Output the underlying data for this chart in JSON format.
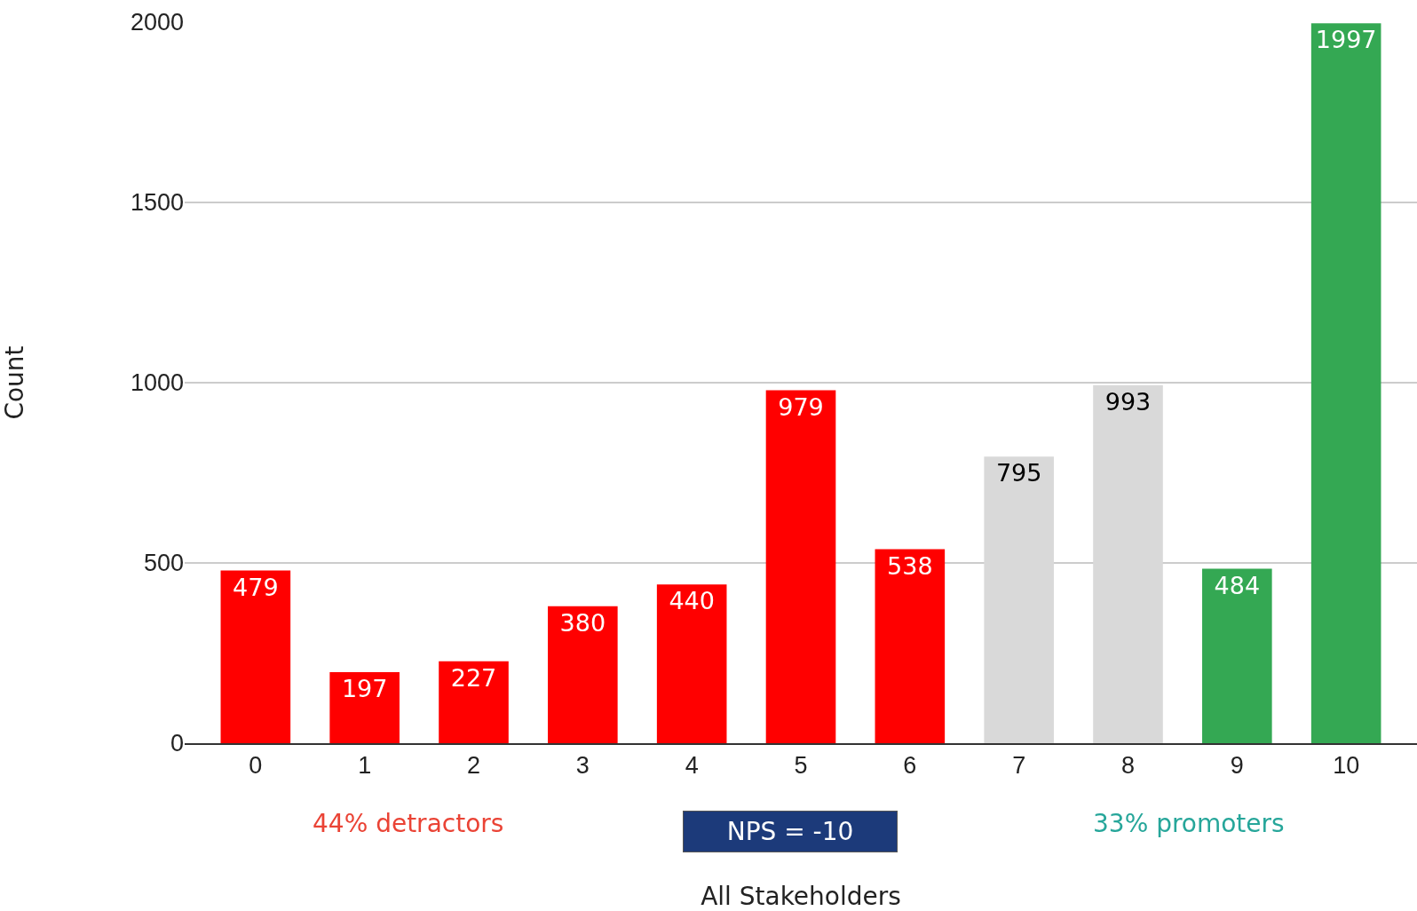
{
  "chart_data": {
    "type": "bar",
    "categories": [
      "0",
      "1",
      "2",
      "3",
      "4",
      "5",
      "6",
      "7",
      "8",
      "9",
      "10"
    ],
    "values": [
      479,
      197,
      227,
      380,
      440,
      979,
      538,
      795,
      993,
      484,
      1997
    ],
    "colors": [
      "#ff0000",
      "#ff0000",
      "#ff0000",
      "#ff0000",
      "#ff0000",
      "#ff0000",
      "#ff0000",
      "#d9d9d9",
      "#d9d9d9",
      "#34a853",
      "#34a853"
    ],
    "xlabel": "All Stakeholders",
    "ylabel": "Count",
    "ylim": [
      0,
      2000
    ],
    "yticks": [
      0,
      500,
      1000,
      1500,
      2000
    ],
    "grid": "y",
    "data_labels": true,
    "annotations": [
      "44% detractors",
      "NPS = -10",
      "33% promoters"
    ]
  }
}
